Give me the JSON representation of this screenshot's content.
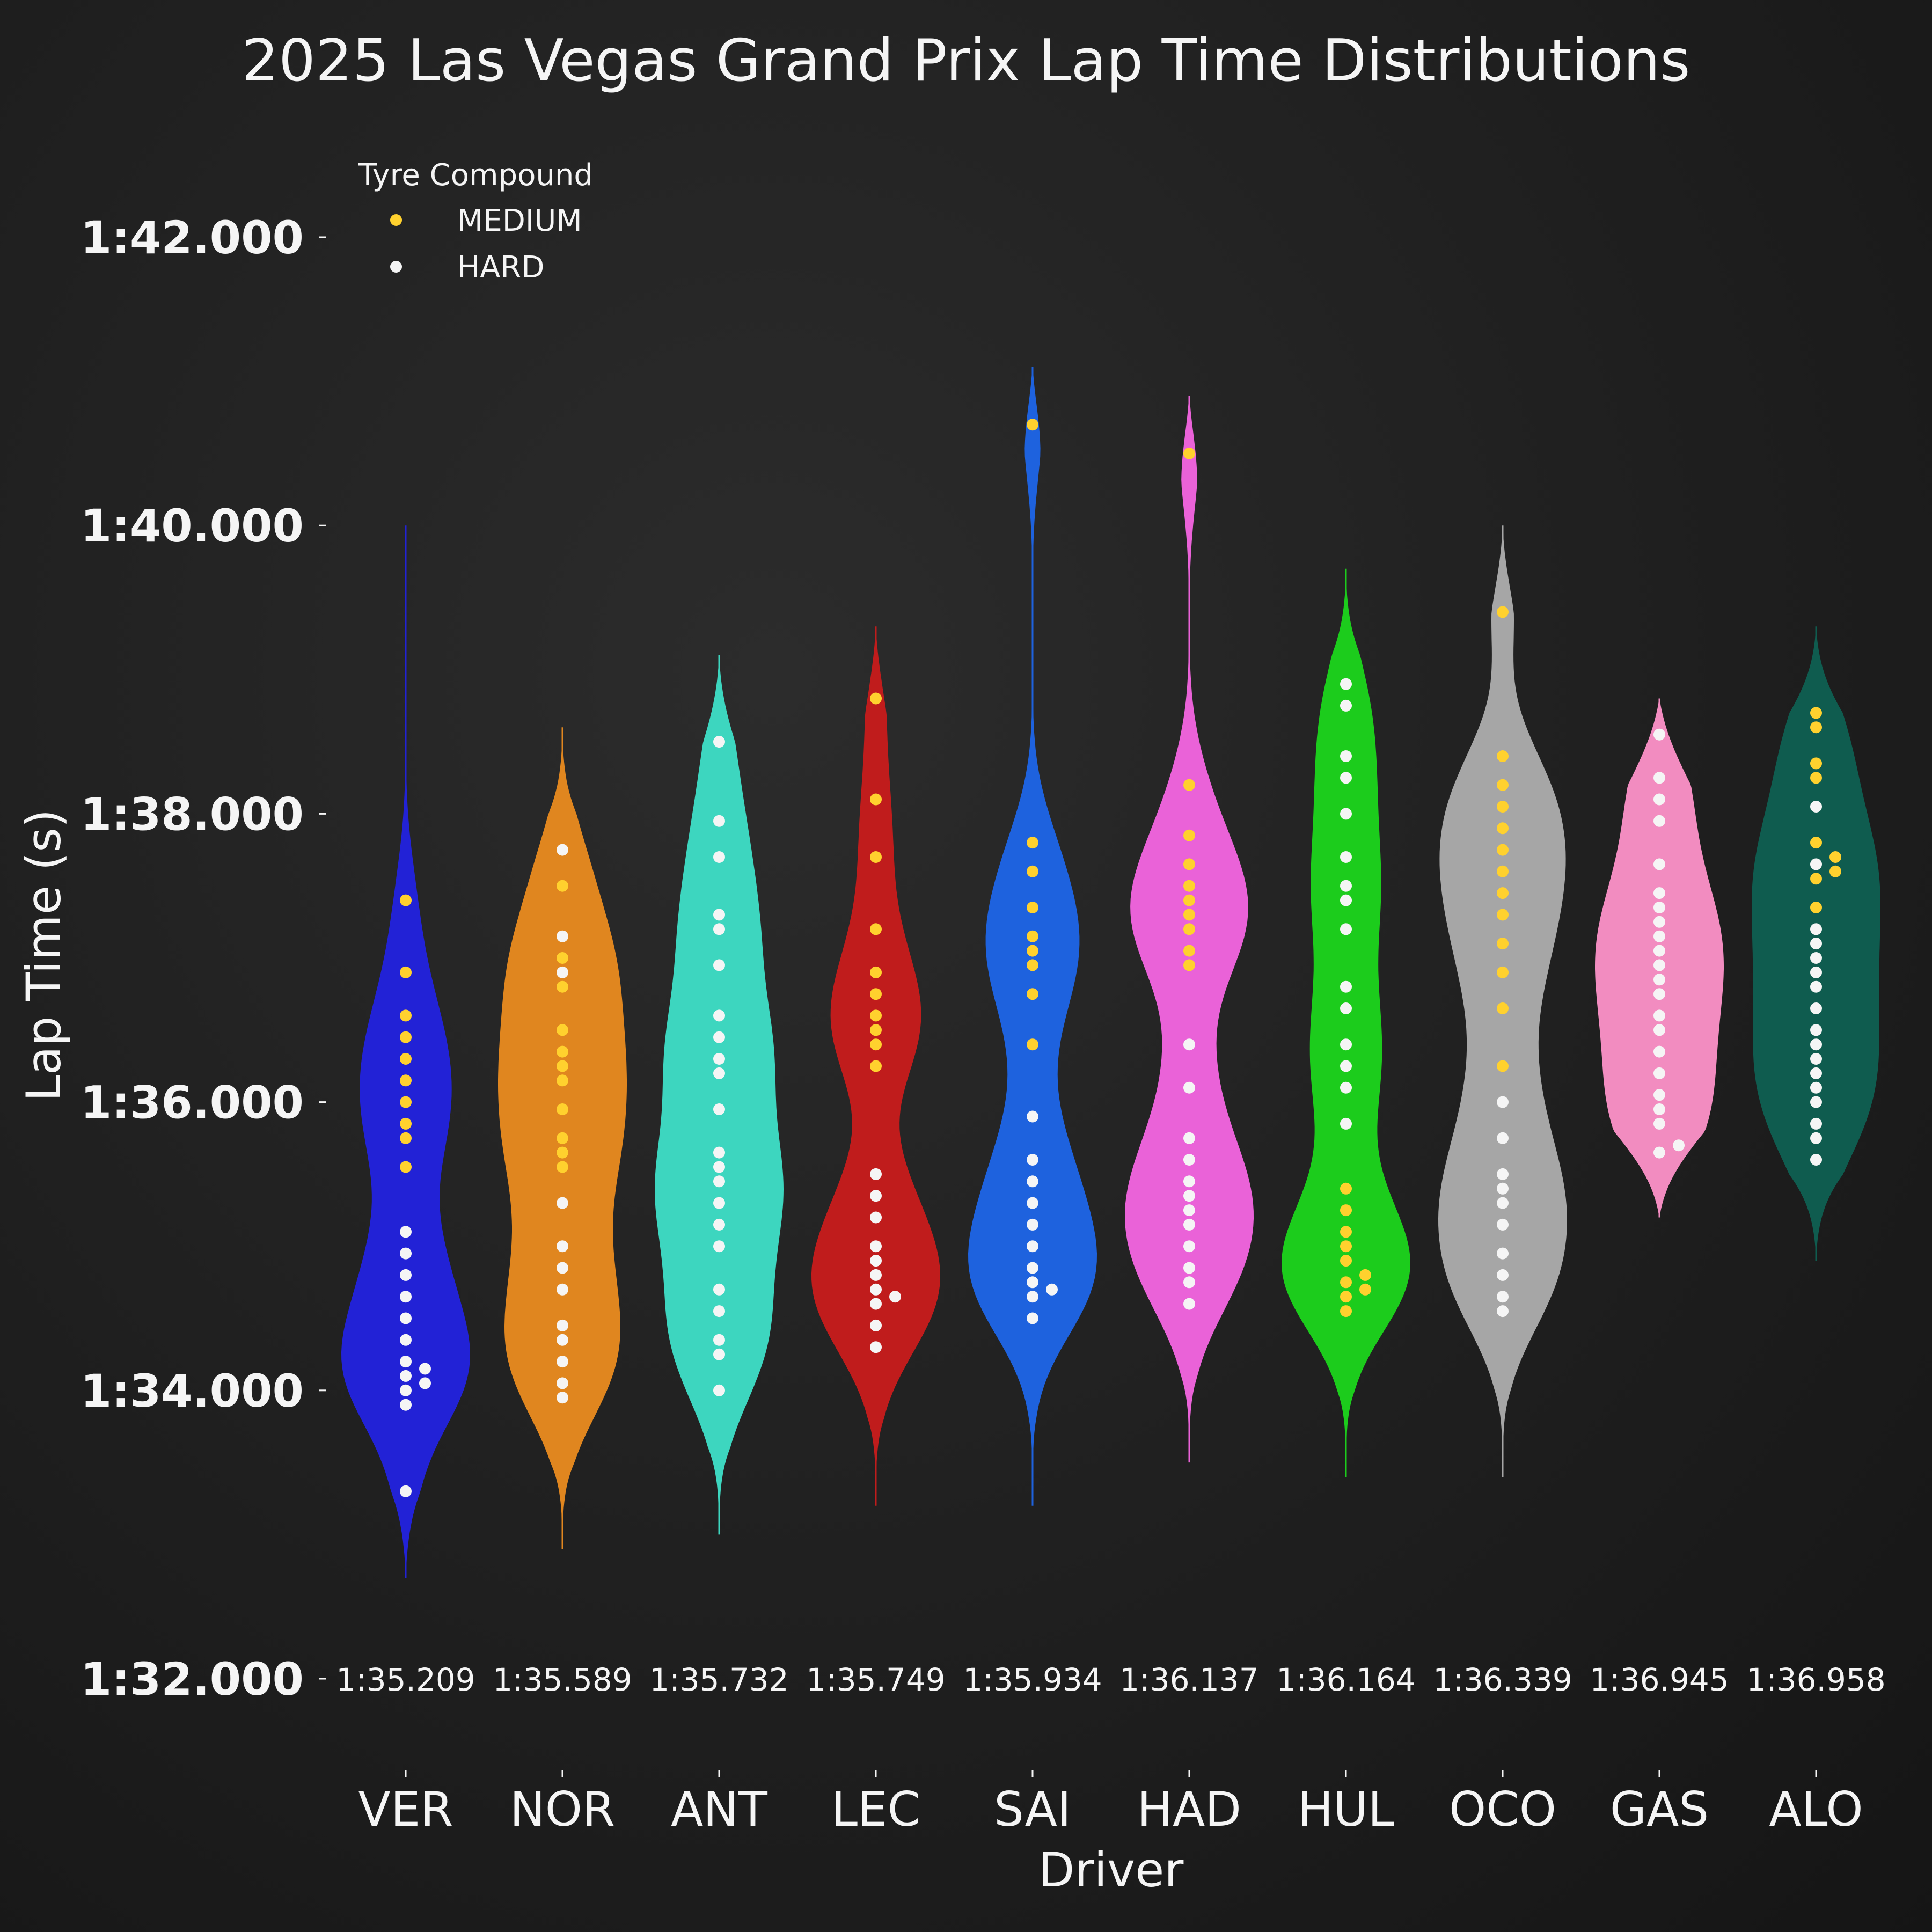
{
  "chart_data": {
    "type": "violin",
    "title": "2025 Las Vegas Grand Prix Lap Time Distributions",
    "xlabel": "Driver",
    "ylabel": "Lap Time (s)",
    "ylim": [
      92,
      102
    ],
    "y_ticks": [
      92,
      94,
      96,
      98,
      100,
      102
    ],
    "y_tick_labels": [
      "1:32.000",
      "1:34.000",
      "1:36.000",
      "1:38.000",
      "1:40.000",
      "1:42.000"
    ],
    "background": "#1e1e1e",
    "legend": {
      "title": "Tyre Compound",
      "placement": "top-left",
      "items": [
        {
          "label": "MEDIUM",
          "color": "#ffd12e"
        },
        {
          "label": "HARD",
          "color": "#f5f5f5"
        }
      ]
    },
    "drivers": [
      {
        "name": "VER",
        "median_label": "1:35.209",
        "color": "#2222d6",
        "range": [
          92.7,
          100.0
        ],
        "medium": [
          97.4,
          96.9,
          96.6,
          96.45,
          96.3,
          96.15,
          96.0,
          95.85,
          95.75,
          95.55
        ],
        "hard": [
          95.1,
          94.95,
          94.8,
          94.65,
          94.5,
          94.35,
          94.2,
          94.15,
          94.1,
          94.05,
          94.0,
          93.9,
          93.3
        ]
      },
      {
        "name": "NOR",
        "median_label": "1:35.589",
        "color": "#e0861f",
        "range": [
          92.9,
          98.6
        ],
        "medium": [
          97.5,
          97.0,
          96.8,
          96.5,
          96.35,
          96.25,
          96.15,
          95.95,
          95.75,
          95.65,
          95.55
        ],
        "hard": [
          97.75,
          97.15,
          96.9,
          95.3,
          95.0,
          94.85,
          94.7,
          94.45,
          94.35,
          94.2,
          94.05,
          93.95
        ]
      },
      {
        "name": "ANT",
        "median_label": "1:35.732",
        "color": "#3dd6bf",
        "range": [
          93.0,
          99.1
        ],
        "medium": [],
        "hard": [
          98.5,
          97.95,
          97.7,
          97.3,
          97.2,
          96.95,
          96.6,
          96.45,
          96.3,
          96.2,
          95.95,
          95.65,
          95.55,
          95.45,
          95.3,
          95.15,
          95.0,
          94.7,
          94.55,
          94.35,
          94.25,
          94.0
        ]
      },
      {
        "name": "LEC",
        "median_label": "1:35.749",
        "color": "#c01c1c",
        "range": [
          93.2,
          99.3
        ],
        "medium": [
          98.8,
          98.1,
          97.7,
          97.2,
          96.9,
          96.75,
          96.6,
          96.5,
          96.4,
          96.25
        ],
        "hard": [
          95.5,
          95.35,
          95.2,
          95.0,
          94.9,
          94.8,
          94.7,
          94.65,
          94.6,
          94.45,
          94.3
        ]
      },
      {
        "name": "SAI",
        "median_label": "1:35.934",
        "color": "#1e62de",
        "range": [
          93.2,
          101.1
        ],
        "medium": [
          100.7,
          97.8,
          97.6,
          97.35,
          97.15,
          97.05,
          96.95,
          96.75,
          96.4
        ],
        "hard": [
          95.9,
          95.6,
          95.45,
          95.3,
          95.15,
          95.0,
          94.85,
          94.75,
          94.7,
          94.65,
          94.5
        ]
      },
      {
        "name": "HAD",
        "median_label": "1:36.137",
        "color": "#ea62d8",
        "range": [
          93.5,
          100.9
        ],
        "medium": [
          100.5,
          98.2,
          97.85,
          97.65,
          97.5,
          97.4,
          97.3,
          97.2,
          97.05,
          96.95
        ],
        "hard": [
          96.4,
          96.1,
          95.75,
          95.6,
          95.45,
          95.35,
          95.25,
          95.15,
          95.0,
          94.85,
          94.75,
          94.6
        ]
      },
      {
        "name": "HUL",
        "median_label": "1:36.164",
        "color": "#1ccc1c",
        "range": [
          93.4,
          99.7
        ],
        "medium": [
          95.4,
          95.25,
          95.1,
          95.0,
          94.9,
          94.8,
          94.75,
          94.7,
          94.65,
          94.55
        ],
        "hard": [
          98.9,
          98.75,
          98.4,
          98.25,
          98.0,
          97.7,
          97.5,
          97.4,
          97.2,
          96.8,
          96.65,
          96.4,
          96.25,
          96.1,
          95.85
        ]
      },
      {
        "name": "OCO",
        "median_label": "1:36.339",
        "color": "#a6a6a6",
        "range": [
          93.4,
          100.0
        ],
        "medium": [
          99.4,
          98.4,
          98.2,
          98.05,
          97.9,
          97.75,
          97.6,
          97.45,
          97.3,
          97.1,
          96.9,
          96.65,
          96.25
        ],
        "hard": [
          96.0,
          95.75,
          95.5,
          95.4,
          95.3,
          95.15,
          94.95,
          94.8,
          94.65,
          94.55
        ]
      },
      {
        "name": "GAS",
        "median_label": "1:36.945",
        "color": "#f28cc0",
        "range": [
          95.2,
          98.8
        ],
        "medium": [],
        "hard": [
          98.55,
          98.25,
          98.1,
          97.95,
          97.65,
          97.45,
          97.35,
          97.25,
          97.15,
          97.05,
          96.95,
          96.85,
          96.75,
          96.6,
          96.5,
          96.35,
          96.2,
          96.05,
          95.95,
          95.85,
          95.7,
          95.65
        ]
      },
      {
        "name": "ALO",
        "median_label": "1:36.958",
        "color": "#0f5c4f",
        "range": [
          94.9,
          99.3
        ],
        "medium": [
          98.7,
          98.6,
          98.35,
          98.25,
          97.8,
          97.7,
          97.6,
          97.55,
          97.35
        ],
        "hard": [
          98.05,
          97.65,
          97.2,
          97.1,
          97.0,
          96.9,
          96.8,
          96.65,
          96.5,
          96.4,
          96.3,
          96.2,
          96.1,
          96.0,
          95.85,
          95.75,
          95.6
        ]
      }
    ]
  }
}
